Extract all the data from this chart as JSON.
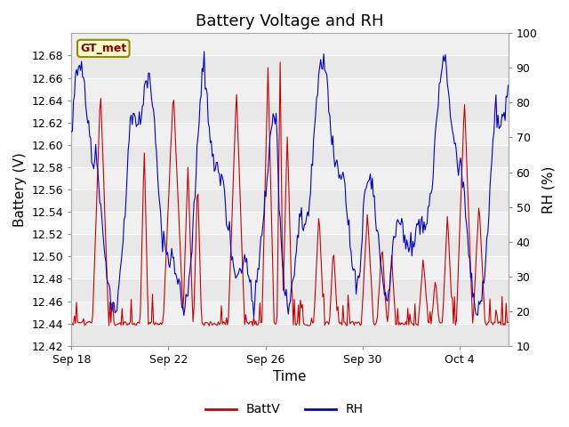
{
  "title": "Battery Voltage and RH",
  "xlabel": "Time",
  "ylabel_left": "Battery (V)",
  "ylabel_right": "RH (%)",
  "ylim_left": [
    12.42,
    12.7
  ],
  "ylim_right": [
    10,
    100
  ],
  "yticks_left": [
    12.42,
    12.44,
    12.46,
    12.48,
    12.5,
    12.52,
    12.54,
    12.56,
    12.58,
    12.6,
    12.62,
    12.64,
    12.66,
    12.68
  ],
  "yticks_right": [
    10,
    20,
    30,
    40,
    50,
    60,
    70,
    80,
    90,
    100
  ],
  "xtick_labels": [
    "Sep 18",
    "Sep 22",
    "Sep 26",
    "Sep 30",
    "Oct 4"
  ],
  "xtick_positions": [
    0,
    4,
    8,
    12,
    16
  ],
  "color_battv": "#cc0000",
  "color_rh": "#0000cc",
  "legend_label_battv": "BattV",
  "legend_label_rh": "RH",
  "station_label": "GT_met",
  "station_label_color": "#8b0000",
  "station_box_facecolor": "#ffffcc",
  "station_box_edgecolor": "#8b8b00",
  "background_color": "#ffffff",
  "plot_bg_color": "#f0f0f0",
  "band_color": "#e8e8e8",
  "grid_color": "#ffffff",
  "title_fontsize": 13,
  "axis_label_fontsize": 11,
  "tick_fontsize": 9
}
